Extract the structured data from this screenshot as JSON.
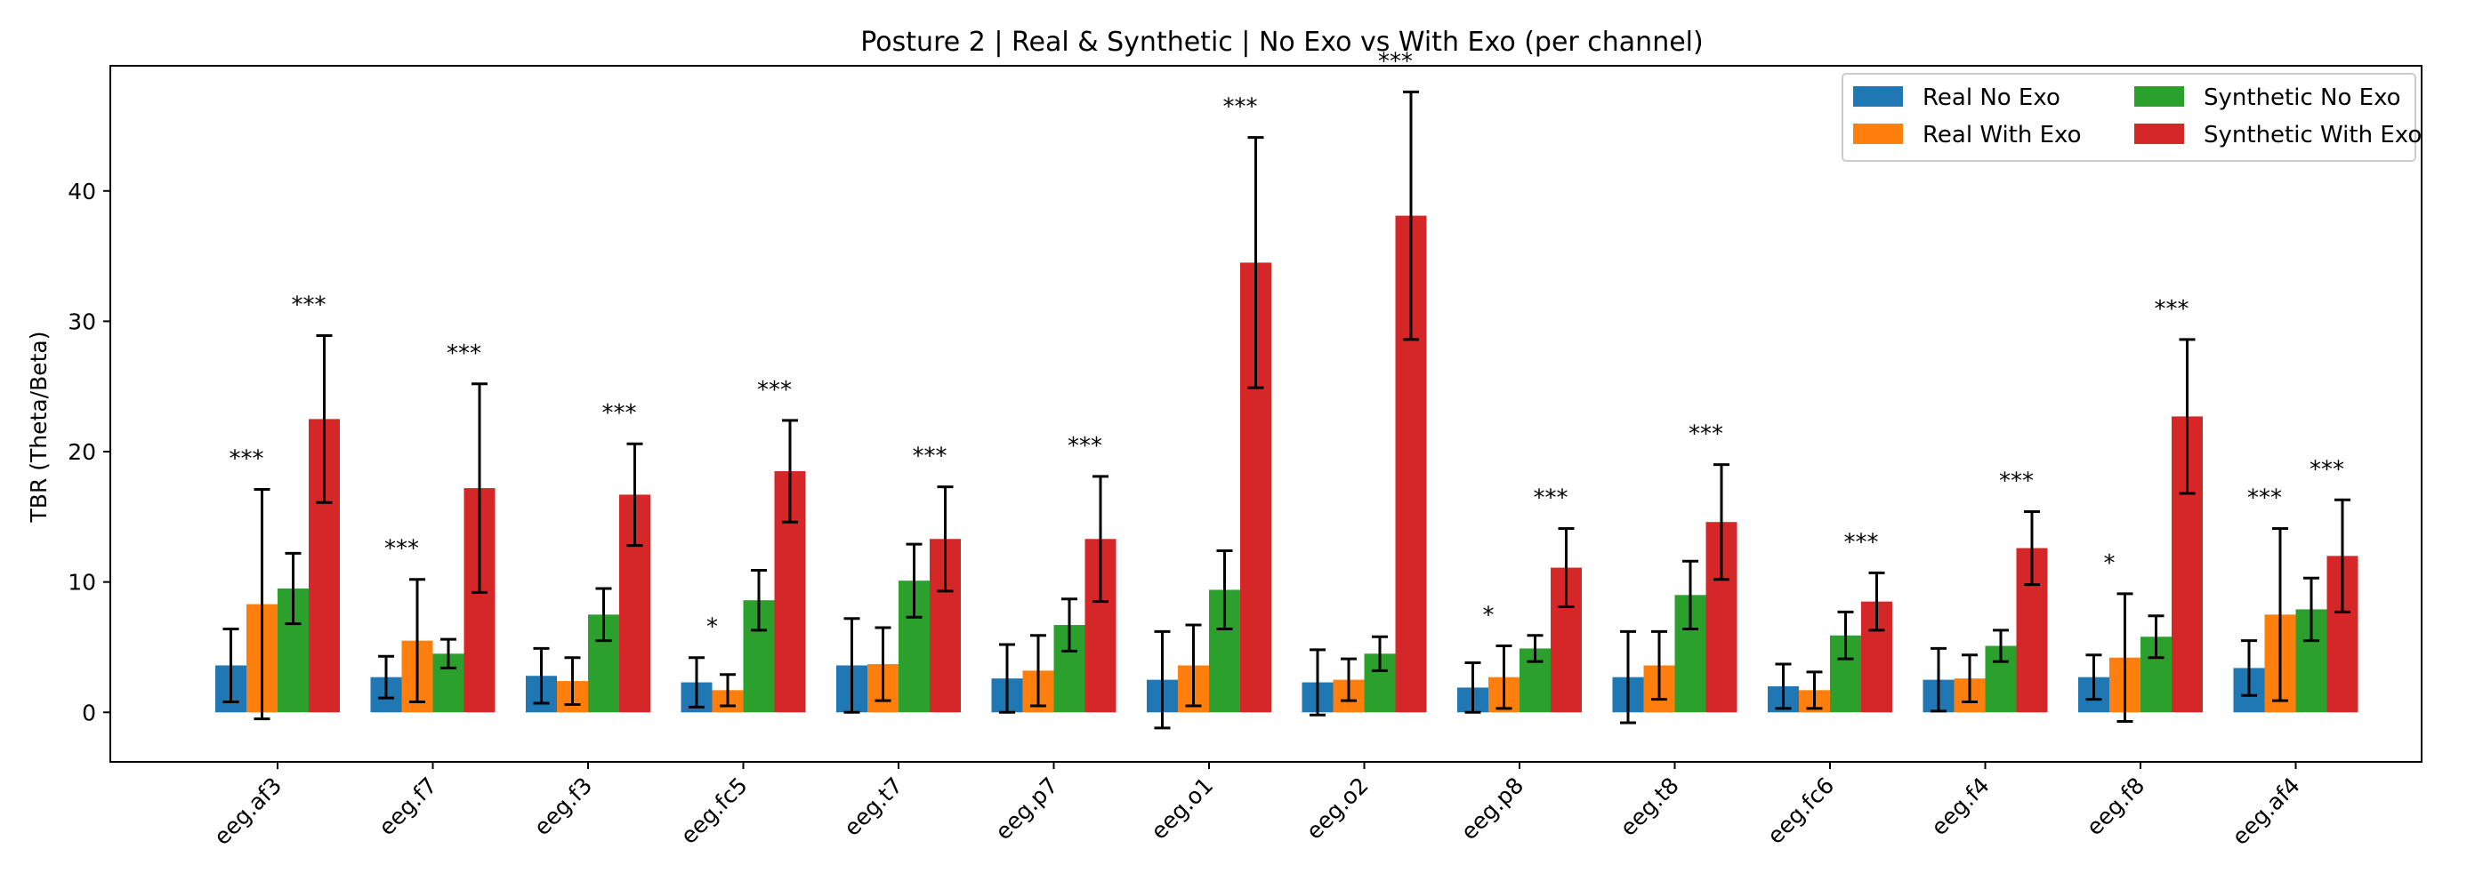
{
  "chart_data": {
    "type": "bar",
    "title": "Posture 2 | Real & Synthetic | No Exo vs With Exo (per channel)",
    "xlabel": "",
    "ylabel": "TBR (Theta/Beta)",
    "ylim": [
      -3.8,
      49.6
    ],
    "yticks": [
      0,
      10,
      20,
      30,
      40
    ],
    "categories": [
      "eeg.af3",
      "eeg.f7",
      "eeg.f3",
      "eeg.fc5",
      "eeg.t7",
      "eeg.p7",
      "eeg.o1",
      "eeg.o2",
      "eeg.p8",
      "eeg.t8",
      "eeg.fc6",
      "eeg.f4",
      "eeg.f8",
      "eeg.af4"
    ],
    "series": [
      {
        "name": "Real No Exo",
        "color": "#1f77b4",
        "values": [
          3.6,
          2.7,
          2.8,
          2.3,
          3.6,
          2.6,
          2.5,
          2.3,
          1.9,
          2.7,
          2.0,
          2.5,
          2.7,
          3.4
        ],
        "errors": [
          2.8,
          1.6,
          2.1,
          1.9,
          3.6,
          2.6,
          3.7,
          2.5,
          1.9,
          3.5,
          1.7,
          2.4,
          1.7,
          2.1
        ]
      },
      {
        "name": "Real With Exo",
        "color": "#ff7f0e",
        "values": [
          8.3,
          5.5,
          2.4,
          1.7,
          3.7,
          3.2,
          3.6,
          2.5,
          2.7,
          3.6,
          1.7,
          2.6,
          4.2,
          7.5
        ],
        "errors": [
          8.8,
          4.7,
          1.8,
          1.2,
          2.8,
          2.7,
          3.1,
          1.6,
          2.4,
          2.6,
          1.4,
          1.8,
          4.9,
          6.6
        ]
      },
      {
        "name": "Synthetic No Exo",
        "color": "#2ca02c",
        "values": [
          9.5,
          4.5,
          7.5,
          8.6,
          10.1,
          6.7,
          9.4,
          4.5,
          4.9,
          9.0,
          5.9,
          5.1,
          5.8,
          7.9
        ],
        "errors": [
          2.7,
          1.1,
          2.0,
          2.3,
          2.8,
          2.0,
          3.0,
          1.3,
          1.0,
          2.6,
          1.8,
          1.2,
          1.6,
          2.4
        ]
      },
      {
        "name": "Synthetic With Exo",
        "color": "#d62728",
        "values": [
          22.5,
          17.2,
          16.7,
          18.5,
          13.3,
          13.3,
          34.5,
          38.1,
          11.1,
          14.6,
          8.5,
          12.6,
          22.7,
          12.0
        ],
        "errors": [
          6.4,
          8.0,
          3.9,
          3.9,
          4.0,
          4.8,
          9.6,
          9.5,
          3.0,
          4.4,
          2.2,
          2.8,
          5.9,
          4.3
        ]
      }
    ],
    "annotations": [
      {
        "category": "eeg.af3",
        "pair": "real",
        "text": "***"
      },
      {
        "category": "eeg.af3",
        "pair": "synthetic",
        "text": "***"
      },
      {
        "category": "eeg.f7",
        "pair": "real",
        "text": "***"
      },
      {
        "category": "eeg.f7",
        "pair": "synthetic",
        "text": "***"
      },
      {
        "category": "eeg.f3",
        "pair": "synthetic",
        "text": "***"
      },
      {
        "category": "eeg.fc5",
        "pair": "real",
        "text": "*"
      },
      {
        "category": "eeg.fc5",
        "pair": "synthetic",
        "text": "***"
      },
      {
        "category": "eeg.t7",
        "pair": "synthetic",
        "text": "***"
      },
      {
        "category": "eeg.p7",
        "pair": "synthetic",
        "text": "***"
      },
      {
        "category": "eeg.o1",
        "pair": "synthetic",
        "text": "***"
      },
      {
        "category": "eeg.o2",
        "pair": "synthetic",
        "text": "***"
      },
      {
        "category": "eeg.p8",
        "pair": "real",
        "text": "*"
      },
      {
        "category": "eeg.p8",
        "pair": "synthetic",
        "text": "***"
      },
      {
        "category": "eeg.t8",
        "pair": "synthetic",
        "text": "***"
      },
      {
        "category": "eeg.fc6",
        "pair": "synthetic",
        "text": "***"
      },
      {
        "category": "eeg.f4",
        "pair": "synthetic",
        "text": "***"
      },
      {
        "category": "eeg.f8",
        "pair": "real",
        "text": "*"
      },
      {
        "category": "eeg.f8",
        "pair": "synthetic",
        "text": "***"
      },
      {
        "category": "eeg.af4",
        "pair": "real",
        "text": "***"
      },
      {
        "category": "eeg.af4",
        "pair": "synthetic",
        "text": "***"
      }
    ],
    "legend": {
      "position": "top-right",
      "columns": 2
    },
    "grid": false
  }
}
